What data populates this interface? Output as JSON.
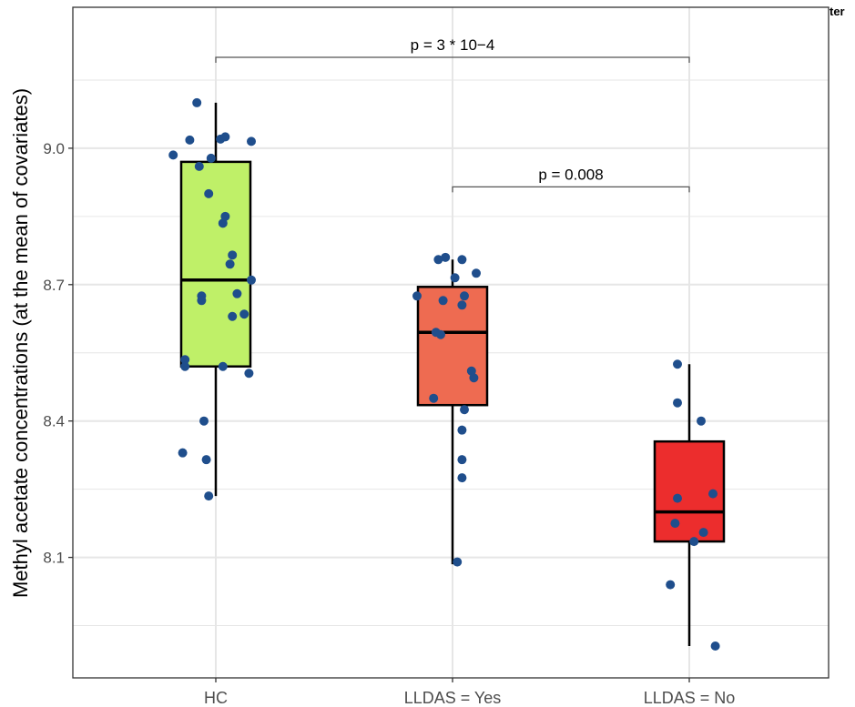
{
  "chart_data": {
    "type": "box",
    "ylabel": "Methyl acetate concentrations (at the mean of covariates)",
    "xlabel": "",
    "ylim": [
      7.835,
      9.31
    ],
    "yticks": [
      8.1,
      8.4,
      8.7,
      9.0
    ],
    "ytick_labels": [
      "8.1",
      "8.4",
      "8.7",
      "9.0"
    ],
    "categories": [
      "HC",
      "LLDAS = Yes",
      "LLDAS = No"
    ],
    "grid": true,
    "corner_text": "ter",
    "colors": {
      "box_fills": [
        "#bff068",
        "#ee6b51",
        "#ec2d2d"
      ],
      "points": "#1f4e8c",
      "grid": "#e6e6e6",
      "panel_border": "#333333"
    },
    "boxes": [
      {
        "name": "HC",
        "whisker_low": 8.235,
        "q1": 8.52,
        "median": 8.71,
        "q3": 8.97,
        "whisker_high": 9.1
      },
      {
        "name": "LLDAS = Yes",
        "whisker_low": 8.085,
        "q1": 8.435,
        "median": 8.595,
        "q3": 8.695,
        "whisker_high": 8.755
      },
      {
        "name": "LLDAS = No",
        "whisker_low": 7.905,
        "q1": 8.135,
        "median": 8.2,
        "q3": 8.355,
        "whisker_high": 8.525
      }
    ],
    "points": [
      [
        {
          "dx": -0.18,
          "y": 8.985
        },
        {
          "dx": -0.11,
          "y": 9.018
        },
        {
          "dx": -0.07,
          "y": 8.96
        },
        {
          "dx": -0.02,
          "y": 8.978
        },
        {
          "dx": 0.02,
          "y": 9.02
        },
        {
          "dx": 0.04,
          "y": 9.025
        },
        {
          "dx": 0.15,
          "y": 9.015
        },
        {
          "dx": -0.08,
          "y": 9.1
        },
        {
          "dx": -0.03,
          "y": 8.9
        },
        {
          "dx": 0.04,
          "y": 8.85
        },
        {
          "dx": 0.03,
          "y": 8.835
        },
        {
          "dx": 0.07,
          "y": 8.765
        },
        {
          "dx": 0.06,
          "y": 8.745
        },
        {
          "dx": 0.15,
          "y": 8.71
        },
        {
          "dx": 0.09,
          "y": 8.68
        },
        {
          "dx": -0.06,
          "y": 8.675
        },
        {
          "dx": -0.06,
          "y": 8.665
        },
        {
          "dx": 0.12,
          "y": 8.635
        },
        {
          "dx": 0.07,
          "y": 8.63
        },
        {
          "dx": -0.13,
          "y": 8.535
        },
        {
          "dx": -0.13,
          "y": 8.52
        },
        {
          "dx": 0.03,
          "y": 8.52
        },
        {
          "dx": 0.14,
          "y": 8.505
        },
        {
          "dx": -0.05,
          "y": 8.4
        },
        {
          "dx": -0.14,
          "y": 8.33
        },
        {
          "dx": -0.04,
          "y": 8.315
        },
        {
          "dx": -0.03,
          "y": 8.235
        }
      ],
      [
        {
          "dx": -0.06,
          "y": 8.755
        },
        {
          "dx": -0.03,
          "y": 8.76
        },
        {
          "dx": 0.04,
          "y": 8.755
        },
        {
          "dx": 0.1,
          "y": 8.725
        },
        {
          "dx": 0.01,
          "y": 8.715
        },
        {
          "dx": -0.15,
          "y": 8.675
        },
        {
          "dx": -0.04,
          "y": 8.665
        },
        {
          "dx": 0.05,
          "y": 8.675
        },
        {
          "dx": 0.04,
          "y": 8.655
        },
        {
          "dx": -0.07,
          "y": 8.595
        },
        {
          "dx": -0.05,
          "y": 8.59
        },
        {
          "dx": 0.08,
          "y": 8.51
        },
        {
          "dx": 0.09,
          "y": 8.495
        },
        {
          "dx": -0.08,
          "y": 8.45
        },
        {
          "dx": 0.05,
          "y": 8.425
        },
        {
          "dx": 0.04,
          "y": 8.38
        },
        {
          "dx": 0.04,
          "y": 8.315
        },
        {
          "dx": 0.04,
          "y": 8.275
        },
        {
          "dx": 0.02,
          "y": 8.09
        }
      ],
      [
        {
          "dx": -0.05,
          "y": 8.525
        },
        {
          "dx": -0.05,
          "y": 8.44
        },
        {
          "dx": 0.05,
          "y": 8.4
        },
        {
          "dx": 0.1,
          "y": 8.24
        },
        {
          "dx": -0.05,
          "y": 8.23
        },
        {
          "dx": -0.06,
          "y": 8.175
        },
        {
          "dx": 0.06,
          "y": 8.155
        },
        {
          "dx": 0.02,
          "y": 8.135
        },
        {
          "dx": -0.08,
          "y": 8.04
        },
        {
          "dx": 0.11,
          "y": 7.905
        }
      ]
    ],
    "comparisons": [
      {
        "from": 0,
        "to": 2,
        "y": 9.2,
        "label": "p = 3 * 10−4"
      },
      {
        "from": 1,
        "to": 2,
        "y": 8.915,
        "label": "p = 0.008"
      }
    ]
  }
}
